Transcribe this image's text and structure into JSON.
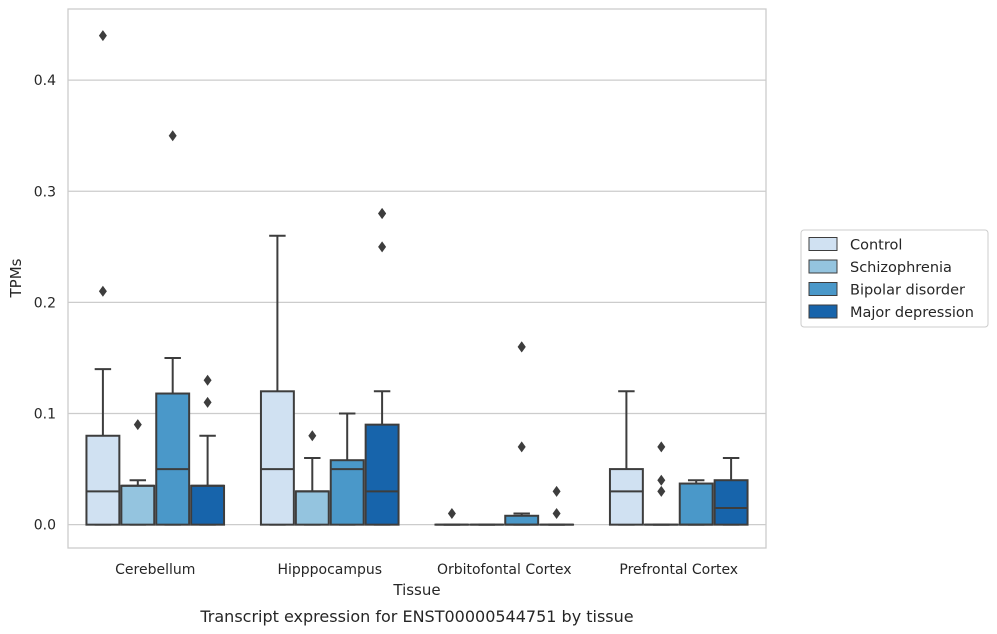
{
  "chart_data": {
    "type": "box",
    "caption": "Transcript expression for ENST00000544751 by tissue",
    "xlabel": "Tissue",
    "ylabel": "TPMs",
    "ylim": [
      -0.021,
      0.464
    ],
    "yticks": [
      0.0,
      0.1,
      0.2,
      0.3,
      0.4
    ],
    "ytick_labels": [
      "0.0",
      "0.1",
      "0.2",
      "0.3",
      "0.4"
    ],
    "grid": "horizontal",
    "legend_position": "right",
    "categories": [
      "Cerebellum",
      "Hipppocampus",
      "Orbitofontal Cortex",
      "Prefrontal Cortex"
    ],
    "series": [
      {
        "name": "Control",
        "color": "#d0e1f2",
        "boxes": [
          {
            "q1": 0.0,
            "median": 0.03,
            "q3": 0.08,
            "whisker_low": 0.0,
            "whisker_high": 0.14,
            "outliers": [
              0.21,
              0.44
            ]
          },
          {
            "q1": 0.0,
            "median": 0.05,
            "q3": 0.12,
            "whisker_low": 0.0,
            "whisker_high": 0.26,
            "outliers": []
          },
          {
            "q1": 0.0,
            "median": 0.0,
            "q3": 0.0,
            "whisker_low": 0.0,
            "whisker_high": 0.0,
            "outliers": [
              0.01
            ]
          },
          {
            "q1": 0.0,
            "median": 0.03,
            "q3": 0.05,
            "whisker_low": 0.0,
            "whisker_high": 0.12,
            "outliers": []
          }
        ]
      },
      {
        "name": "Schizophrenia",
        "color": "#94c4df",
        "boxes": [
          {
            "q1": 0.0,
            "median": 0.035,
            "q3": 0.035,
            "whisker_low": 0.0,
            "whisker_high": 0.04,
            "outliers": [
              0.09
            ]
          },
          {
            "q1": 0.0,
            "median": 0.03,
            "q3": 0.03,
            "whisker_low": 0.0,
            "whisker_high": 0.06,
            "outliers": [
              0.08
            ]
          },
          {
            "q1": 0.0,
            "median": 0.0,
            "q3": 0.0,
            "whisker_low": 0.0,
            "whisker_high": 0.0,
            "outliers": []
          },
          {
            "q1": 0.0,
            "median": 0.0,
            "q3": 0.0,
            "whisker_low": 0.0,
            "whisker_high": 0.0,
            "outliers": [
              0.03,
              0.04,
              0.07
            ]
          }
        ]
      },
      {
        "name": "Bipolar disorder",
        "color": "#4a98c9",
        "boxes": [
          {
            "q1": 0.0,
            "median": 0.05,
            "q3": 0.118,
            "whisker_low": 0.0,
            "whisker_high": 0.15,
            "outliers": [
              0.35
            ]
          },
          {
            "q1": 0.0,
            "median": 0.05,
            "q3": 0.058,
            "whisker_low": 0.0,
            "whisker_high": 0.1,
            "outliers": []
          },
          {
            "q1": 0.0,
            "median": 0.0,
            "q3": 0.008,
            "whisker_low": 0.0,
            "whisker_high": 0.01,
            "outliers": [
              0.07,
              0.16,
              0.16
            ]
          },
          {
            "q1": 0.0,
            "median": 0.0,
            "q3": 0.037,
            "whisker_low": 0.0,
            "whisker_high": 0.04,
            "outliers": []
          }
        ]
      },
      {
        "name": "Major depression",
        "color": "#1764ab",
        "boxes": [
          {
            "q1": 0.0,
            "median": 0.035,
            "q3": 0.035,
            "whisker_low": 0.0,
            "whisker_high": 0.08,
            "outliers": [
              0.11,
              0.13
            ]
          },
          {
            "q1": 0.0,
            "median": 0.03,
            "q3": 0.09,
            "whisker_low": 0.0,
            "whisker_high": 0.12,
            "outliers": [
              0.25,
              0.28,
              0.28
            ]
          },
          {
            "q1": 0.0,
            "median": 0.0,
            "q3": 0.0,
            "whisker_low": 0.0,
            "whisker_high": 0.0,
            "outliers": [
              0.01,
              0.03
            ]
          },
          {
            "q1": 0.0,
            "median": 0.015,
            "q3": 0.04,
            "whisker_low": 0.0,
            "whisker_high": 0.06,
            "outliers": []
          }
        ]
      }
    ]
  }
}
